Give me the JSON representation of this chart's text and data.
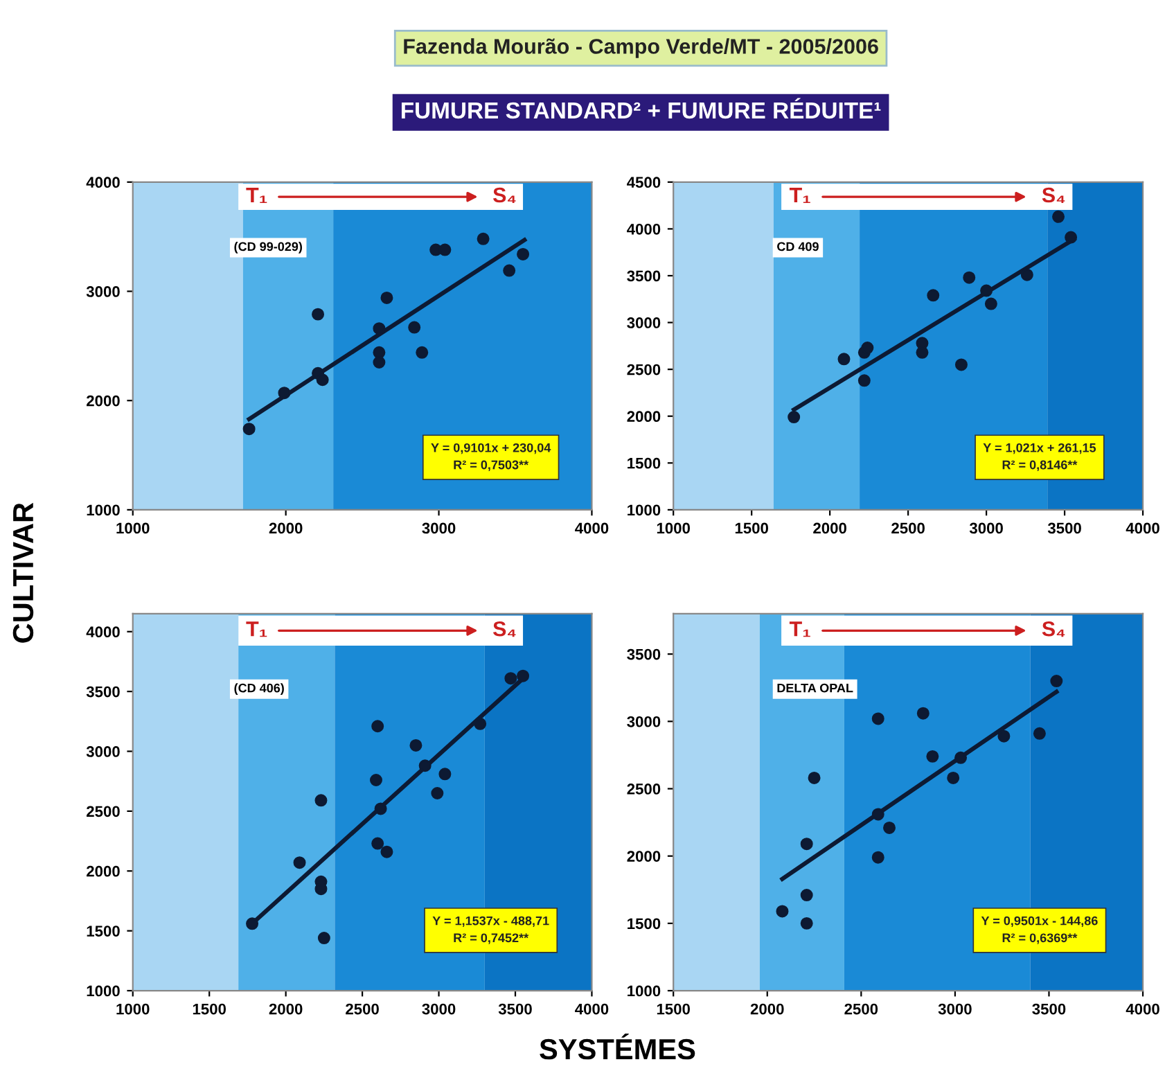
{
  "chart_data": [
    {
      "type": "scatter",
      "title": "Fazenda Mourão - Campo Verde/MT - 2005/2006",
      "subtitle": "FUMURE STANDARD² + FUMURE RÉDUITE¹",
      "ylabel": "CULTIVAR",
      "annotations": [
        "(CD 99-029)",
        "Y = 0,9101x + 230,04",
        "R² = 0,7503**",
        "T₁",
        "S₄"
      ],
      "xlim": [
        1000,
        4000
      ],
      "xticks": [
        1000,
        2000,
        3000,
        4000
      ],
      "ylim": [
        1000,
        4000
      ],
      "yticks": [
        1000,
        2000,
        3000,
        4000
      ],
      "grid": false,
      "bands": [
        {
          "axis": "x",
          "from": 1000,
          "to": 1720,
          "color": "#a9d6f3"
        },
        {
          "axis": "x",
          "from": 1720,
          "to": 2310,
          "color": "#4fb0e8"
        },
        {
          "axis": "x",
          "from": 2310,
          "to": 4000,
          "color": "#1a8ad6"
        }
      ],
      "series": [
        {
          "marker": "circle",
          "color": "#0d1a33",
          "x": [
            1760,
            1990,
            2210,
            2210,
            2240,
            2610,
            2610,
            2610,
            2660,
            2840,
            2890,
            2980,
            3040,
            3290,
            3460,
            3550
          ],
          "values": [
            1740,
            2070,
            2790,
            2250,
            2190,
            2660,
            2440,
            2350,
            2940,
            2670,
            2440,
            3380,
            3380,
            3480,
            3190,
            3340
          ]
        },
        {
          "type": "line",
          "color": "#0d1a33",
          "x": [
            1760,
            3560
          ],
          "values": [
            1830,
            3470
          ]
        }
      ]
    },
    {
      "type": "scatter",
      "annotations": [
        "CD 409",
        "Y = 1,021x + 261,15",
        "R² = 0,8146**",
        "T₁",
        "S₄"
      ],
      "xlim": [
        1000,
        4000
      ],
      "xticks": [
        1000,
        1500,
        2000,
        2500,
        3000,
        3500,
        4000
      ],
      "ylim": [
        1000,
        4500
      ],
      "yticks": [
        1000,
        1500,
        2000,
        2500,
        3000,
        3500,
        4000,
        4500
      ],
      "grid": false,
      "bands": [
        {
          "axis": "x",
          "from": 1000,
          "to": 1640,
          "color": "#a9d6f3"
        },
        {
          "axis": "x",
          "from": 1640,
          "to": 2190,
          "color": "#4fb0e8"
        },
        {
          "axis": "x",
          "from": 2190,
          "to": 3390,
          "color": "#1a8ad6"
        },
        {
          "axis": "x",
          "from": 3390,
          "to": 4000,
          "color": "#0b74c4"
        }
      ],
      "series": [
        {
          "marker": "circle",
          "color": "#0d1a33",
          "x": [
            1770,
            2090,
            2220,
            2220,
            2240,
            2590,
            2590,
            2660,
            2840,
            2890,
            3000,
            3030,
            3260,
            3460,
            3540
          ],
          "values": [
            1990,
            2610,
            2380,
            2680,
            2730,
            2680,
            2780,
            3290,
            2550,
            3480,
            3340,
            3200,
            3510,
            4130,
            3910
          ]
        },
        {
          "type": "line",
          "color": "#0d1a33",
          "x": [
            1770,
            3560
          ],
          "values": [
            2070,
            3890
          ]
        }
      ]
    },
    {
      "type": "scatter",
      "xlabel": "SYSTÉMES",
      "annotations": [
        "(CD 406)",
        "Y = 1,1537x - 488,71",
        "R² = 0,7452**",
        "T₁",
        "S₄"
      ],
      "xlim": [
        1000,
        4000
      ],
      "xticks": [
        1000,
        1500,
        2000,
        2500,
        3000,
        3500,
        4000
      ],
      "ylim": [
        1000,
        4150
      ],
      "yticks": [
        1000,
        1500,
        2000,
        2500,
        3000,
        3500,
        4000
      ],
      "grid": false,
      "bands": [
        {
          "axis": "x",
          "from": 1000,
          "to": 1690,
          "color": "#a9d6f3"
        },
        {
          "axis": "x",
          "from": 1690,
          "to": 2320,
          "color": "#4fb0e8"
        },
        {
          "axis": "x",
          "from": 2320,
          "to": 3300,
          "color": "#1a8ad6"
        },
        {
          "axis": "x",
          "from": 3300,
          "to": 4000,
          "color": "#0b74c4"
        }
      ],
      "series": [
        {
          "marker": "circle",
          "color": "#0d1a33",
          "x": [
            1780,
            2090,
            2230,
            2230,
            2230,
            2250,
            2600,
            2590,
            2600,
            2660,
            2620,
            2850,
            2910,
            2990,
            3040,
            3270,
            3470,
            3550
          ],
          "values": [
            1560,
            2070,
            2590,
            1910,
            1850,
            1440,
            3210,
            2760,
            2230,
            2160,
            2520,
            3050,
            2880,
            2650,
            2810,
            3230,
            3610,
            3630
          ]
        },
        {
          "type": "line",
          "color": "#0d1a33",
          "x": [
            1780,
            3560
          ],
          "values": [
            1560,
            3620
          ]
        }
      ]
    },
    {
      "type": "scatter",
      "annotations": [
        "DELTA OPAL",
        "Y = 0,9501x - 144,86",
        "R² = 0,6369**",
        "T₁",
        "S₄"
      ],
      "xlim": [
        1500,
        4000
      ],
      "xticks": [
        1500,
        2000,
        2500,
        3000,
        3500,
        4000
      ],
      "ylim": [
        1000,
        3800
      ],
      "yticks": [
        1000,
        1500,
        2000,
        2500,
        3000,
        3500
      ],
      "grid": false,
      "bands": [
        {
          "axis": "x",
          "from": 1500,
          "to": 1960,
          "color": "#a9d6f3"
        },
        {
          "axis": "x",
          "from": 1960,
          "to": 2410,
          "color": "#4fb0e8"
        },
        {
          "axis": "x",
          "from": 2410,
          "to": 3400,
          "color": "#1a8ad6"
        },
        {
          "axis": "x",
          "from": 3400,
          "to": 4000,
          "color": "#0b74c4"
        }
      ],
      "series": [
        {
          "marker": "circle",
          "color": "#0d1a33",
          "x": [
            2080,
            2210,
            2210,
            2210,
            2250,
            2590,
            2590,
            2590,
            2650,
            2830,
            2880,
            2990,
            3030,
            3260,
            3450,
            3540
          ],
          "values": [
            1590,
            2090,
            1710,
            1500,
            2580,
            3020,
            1990,
            2310,
            2210,
            3060,
            2740,
            2580,
            2730,
            2890,
            2910,
            3300
          ]
        },
        {
          "type": "line",
          "color": "#0d1a33",
          "x": [
            2080,
            3540
          ],
          "values": [
            1830,
            3220
          ]
        }
      ]
    }
  ]
}
